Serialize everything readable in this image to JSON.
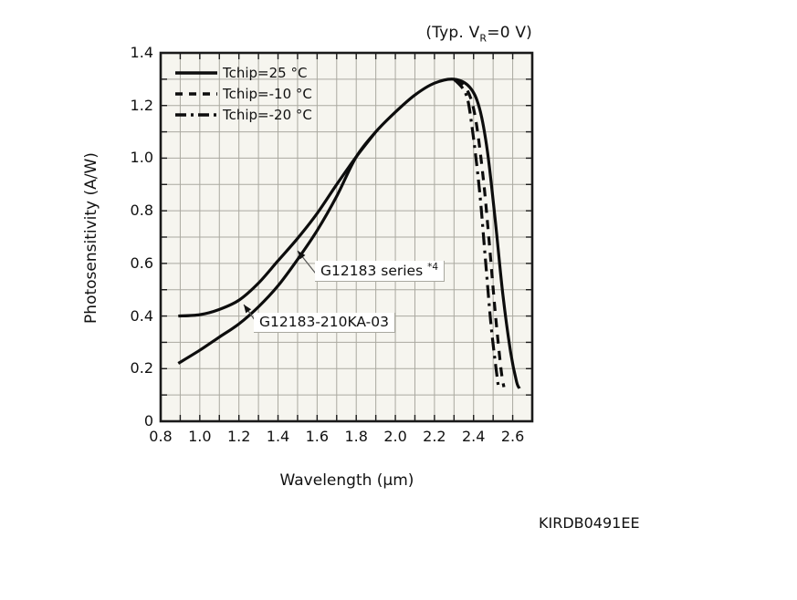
{
  "header": {
    "condition_pre": "(Typ. V",
    "condition_sub": "R",
    "condition_post": "=0 V)"
  },
  "doc_number": "KIRDB0491EE",
  "legend": {
    "items": [
      {
        "label": "Tchip=25 °C",
        "style": "solid"
      },
      {
        "label": "Tchip=-10 °C",
        "style": "dashed"
      },
      {
        "label": "Tchip=-20 °C",
        "style": "dash-dot"
      }
    ]
  },
  "annotations": {
    "series_label": {
      "text": "G12183 series",
      "sup": "*4"
    },
    "variant_label": {
      "text": "G12183-210KA-03",
      "sup": ""
    }
  },
  "chart_data": {
    "type": "line",
    "title": "(Typ. VR=0 V)",
    "xlabel": "Wavelength (μm)",
    "ylabel": "Photosensitivity (A/W)",
    "xlim": [
      0.8,
      2.7
    ],
    "ylim": [
      0,
      1.4
    ],
    "minor_step_x": 0.1,
    "minor_step_y": 0.1,
    "grid": true,
    "legend_position": "top-left-inside",
    "x_tick_labels": [
      "0.8",
      "1.0",
      "1.2",
      "1.4",
      "1.6",
      "1.8",
      "2.0",
      "2.2",
      "2.4",
      "2.6"
    ],
    "y_tick_labels": [
      "0",
      "0.2",
      "0.4",
      "0.6",
      "0.8",
      "1.0",
      "1.2",
      "1.4"
    ],
    "series": [
      {
        "name": "Tchip=25 °C (G12183 series)",
        "style": "solid",
        "points": [
          [
            0.89,
            0.22
          ],
          [
            1.0,
            0.27
          ],
          [
            1.1,
            0.32
          ],
          [
            1.2,
            0.37
          ],
          [
            1.3,
            0.435
          ],
          [
            1.4,
            0.515
          ],
          [
            1.5,
            0.615
          ],
          [
            1.6,
            0.725
          ],
          [
            1.7,
            0.855
          ],
          [
            1.8,
            1.005
          ],
          [
            1.9,
            1.1
          ],
          [
            2.0,
            1.175
          ],
          [
            2.1,
            1.24
          ],
          [
            2.2,
            1.285
          ],
          [
            2.3,
            1.3
          ],
          [
            2.38,
            1.27
          ],
          [
            2.43,
            1.19
          ],
          [
            2.47,
            1.03
          ],
          [
            2.51,
            0.77
          ],
          [
            2.55,
            0.48
          ],
          [
            2.59,
            0.26
          ],
          [
            2.62,
            0.15
          ],
          [
            2.635,
            0.125
          ]
        ]
      },
      {
        "name": "G12183-210KA-03 (short-wavelength branch, Tchip=25 °C)",
        "style": "solid",
        "points": [
          [
            0.89,
            0.4
          ],
          [
            1.0,
            0.405
          ],
          [
            1.1,
            0.425
          ],
          [
            1.2,
            0.46
          ],
          [
            1.3,
            0.525
          ],
          [
            1.4,
            0.61
          ],
          [
            1.5,
            0.695
          ],
          [
            1.6,
            0.79
          ],
          [
            1.7,
            0.9
          ],
          [
            1.8,
            1.005
          ],
          [
            1.9,
            1.1
          ]
        ]
      },
      {
        "name": "Tchip=-10 °C",
        "style": "dashed",
        "points": [
          [
            2.31,
            1.3
          ],
          [
            2.37,
            1.255
          ],
          [
            2.41,
            1.15
          ],
          [
            2.45,
            0.92
          ],
          [
            2.48,
            0.68
          ],
          [
            2.51,
            0.42
          ],
          [
            2.54,
            0.2
          ],
          [
            2.555,
            0.13
          ]
        ]
      },
      {
        "name": "Tchip=-20 °C",
        "style": "dash-dot",
        "points": [
          [
            2.3,
            1.3
          ],
          [
            2.36,
            1.245
          ],
          [
            2.39,
            1.13
          ],
          [
            2.43,
            0.88
          ],
          [
            2.46,
            0.62
          ],
          [
            2.49,
            0.36
          ],
          [
            2.52,
            0.17
          ],
          [
            2.528,
            0.13
          ]
        ]
      }
    ],
    "annotations": [
      {
        "text": "G12183 series *4",
        "points_to": "lower short-wavelength curve",
        "anchor_data": [
          1.49,
          0.66
        ]
      },
      {
        "text": "G12183-210KA-03",
        "points_to": "upper short-wavelength curve",
        "anchor_data": [
          1.21,
          0.45
        ]
      }
    ]
  }
}
